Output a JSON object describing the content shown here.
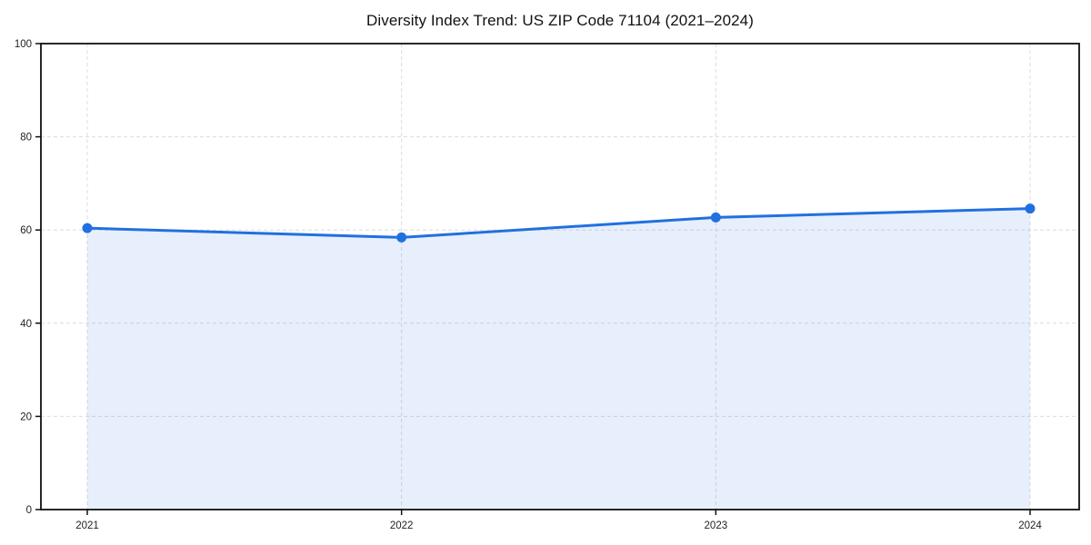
{
  "chart_data": {
    "type": "area",
    "title": "Diversity Index Trend: US ZIP Code 71104 (2021–2024)",
    "x": [
      "2021",
      "2022",
      "2023",
      "2024"
    ],
    "series": [
      {
        "name": "Diversity Index",
        "values": [
          60.4,
          58.4,
          62.7,
          64.6
        ]
      }
    ],
    "xlabel": "",
    "ylabel": "",
    "ylim": [
      0,
      100
    ],
    "yticks": [
      0,
      20,
      40,
      60,
      80,
      100
    ],
    "grid": true,
    "grid_style": "dashed",
    "legend": false,
    "marker": "circle",
    "colors": {
      "line": "#2170e0",
      "marker": "#2170e0",
      "fill": "rgba(33,112,224,0.11)",
      "grid": "#dcdcdc",
      "spine": "#111111",
      "tick_label": "#222222",
      "title": "#111111"
    }
  }
}
